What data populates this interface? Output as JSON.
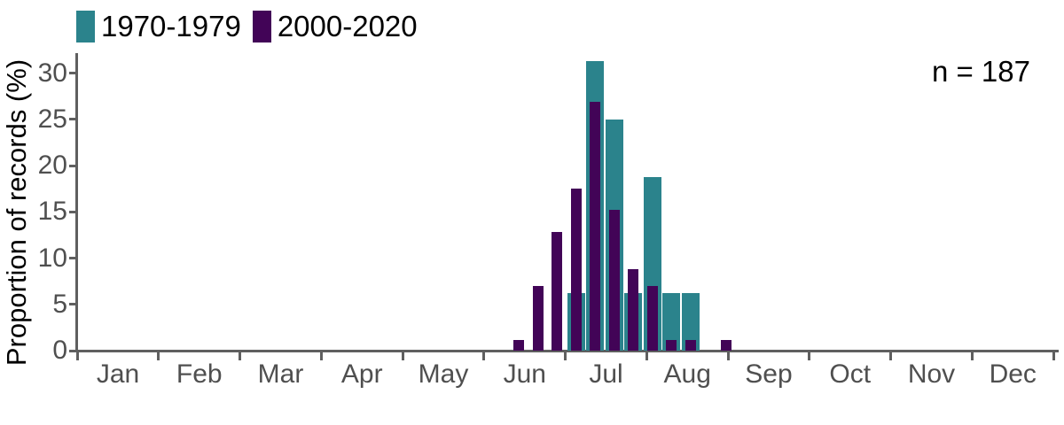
{
  "chart_data": {
    "type": "bar",
    "title": "",
    "xlabel": "",
    "ylabel": "Proportion of records (%)",
    "annotation": "n = 187",
    "legend_position": "top-left",
    "grid": false,
    "ylim": [
      0,
      30
    ],
    "y_ticks": [
      0,
      5,
      10,
      15,
      20,
      25,
      30
    ],
    "x_tick_labels": [
      "Jan",
      "Feb",
      "Mar",
      "Apr",
      "May",
      "Jun",
      "Jul",
      "Aug",
      "Sep",
      "Oct",
      "Nov",
      "Dec"
    ],
    "x_axis_note": "x positions are in month units, Jan=0 .. Dec=12; bars are ~weekly bins from mid-June to end of August",
    "series": [
      {
        "name": "1970-1979",
        "color": "#2b838c",
        "points": [
          {
            "x": 6.134,
            "value": 6.25
          },
          {
            "x": 6.369,
            "value": 31.25
          },
          {
            "x": 6.603,
            "value": 25.0
          },
          {
            "x": 6.838,
            "value": 6.25
          },
          {
            "x": 7.072,
            "value": 18.75
          },
          {
            "x": 7.306,
            "value": 6.25
          },
          {
            "x": 7.541,
            "value": 6.25
          }
        ]
      },
      {
        "name": "2000-2020",
        "color": "#420457",
        "points": [
          {
            "x": 5.431,
            "value": 1.17
          },
          {
            "x": 5.666,
            "value": 7.02
          },
          {
            "x": 5.9,
            "value": 12.87
          },
          {
            "x": 6.134,
            "value": 17.54
          },
          {
            "x": 6.369,
            "value": 26.9
          },
          {
            "x": 6.603,
            "value": 15.2
          },
          {
            "x": 6.838,
            "value": 8.77
          },
          {
            "x": 7.072,
            "value": 7.02
          },
          {
            "x": 7.306,
            "value": 1.17
          },
          {
            "x": 7.541,
            "value": 1.17
          },
          {
            "x": 7.982,
            "value": 1.17
          }
        ]
      }
    ]
  },
  "colors": {
    "axis_line": "#5f5f5f",
    "tick_text": "#4f4f4f",
    "text": "#000000"
  }
}
